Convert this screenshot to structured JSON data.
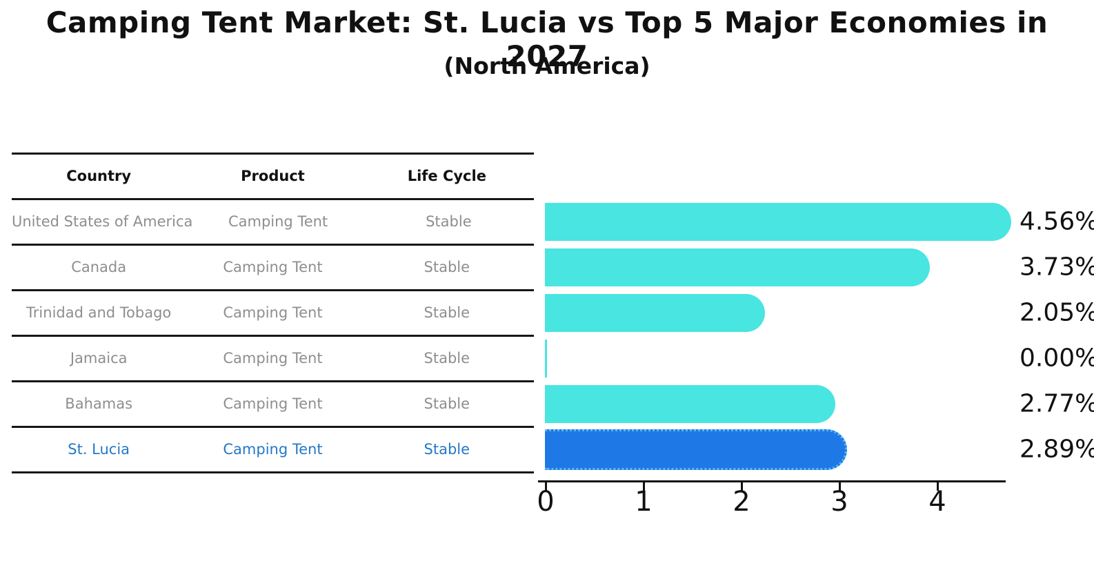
{
  "title": "Camping Tent Market: St. Lucia vs Top 5 Major Economies in 2027",
  "subtitle": "(North America)",
  "table": {
    "headers": [
      "Country",
      "Product",
      "Life Cycle"
    ],
    "rows": [
      {
        "country": "United States of America",
        "product": "Camping Tent",
        "life_cycle": "Stable",
        "highlight": false
      },
      {
        "country": "Canada",
        "product": "Camping Tent",
        "life_cycle": "Stable",
        "highlight": false
      },
      {
        "country": "Trinidad and Tobago",
        "product": "Camping Tent",
        "life_cycle": "Stable",
        "highlight": false
      },
      {
        "country": "Jamaica",
        "product": "Camping Tent",
        "life_cycle": "Stable",
        "highlight": false
      },
      {
        "country": "Bahamas",
        "product": "Camping Tent",
        "life_cycle": "Stable",
        "highlight": false
      },
      {
        "country": "St. Lucia",
        "product": "Camping Tent",
        "life_cycle": "Stable",
        "highlight": true
      }
    ]
  },
  "chart_data": {
    "type": "bar",
    "orientation": "horizontal",
    "categories": [
      "United States of America",
      "Canada",
      "Trinidad and Tobago",
      "Jamaica",
      "Bahamas",
      "St. Lucia"
    ],
    "values": [
      4.56,
      3.73,
      2.05,
      0.0,
      2.77,
      2.89
    ],
    "value_labels": [
      "4.56%",
      "3.73%",
      "2.05%",
      "0.00%",
      "2.77%",
      "2.89%"
    ],
    "highlight_index": 5,
    "xticks": [
      0,
      1,
      2,
      3,
      4
    ],
    "xlim": [
      0,
      4.7
    ],
    "grid": false,
    "legend": "none",
    "colors": {
      "bar": "#48e5e1",
      "highlight_bar": "#1e78e6",
      "highlight_border": "#58b8f2",
      "highlight_text": "#2478c8",
      "text": "#111111",
      "muted_text": "#8e8e8e"
    }
  }
}
